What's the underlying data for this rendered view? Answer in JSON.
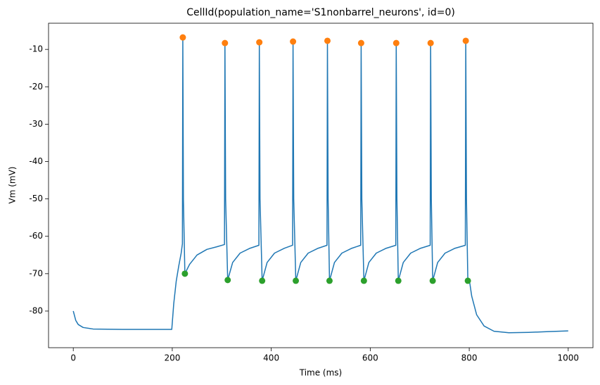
{
  "chart_data": {
    "type": "line",
    "title": "CellId(population_name='S1nonbarrel_neurons', id=0)",
    "x_label": "Time (ms)",
    "y_label": "Vm (mV)",
    "xlim": [
      -50,
      1050
    ],
    "ylim": [
      -89.8,
      -3.0
    ],
    "xticks": [
      0,
      200,
      400,
      600,
      800,
      1000
    ],
    "yticks": [
      -80,
      -70,
      -60,
      -50,
      -40,
      -30,
      -20,
      -10
    ],
    "grid": false,
    "series": [
      {
        "mode": "line",
        "color": "#1f77b4",
        "x": [
          0,
          5,
          10,
          20,
          40,
          100,
          199,
          203,
          208,
          213,
          218,
          220.5,
          221.3,
          222.5,
          225.5,
          235,
          250,
          270,
          290,
          305.5,
          306.4,
          307.8,
          312,
          322,
          337,
          357,
          375,
          375.9,
          377.3,
          381.6,
          391.6,
          406.6,
          426.6,
          443.1,
          444,
          445.4,
          449.6,
          459.6,
          474.6,
          494.6,
          512.6,
          513.5,
          514.9,
          517.7,
          527.7,
          542.7,
          562.7,
          580.7,
          581.6,
          583,
          587.2,
          597.2,
          612.2,
          632.2,
          651.6,
          652.5,
          653.9,
          656.7,
          666.7,
          681.7,
          701.7,
          721.1,
          722,
          723.4,
          726.2,
          736.2,
          751.2,
          771.2,
          792.1,
          793,
          794.4,
          797.2,
          800,
          805,
          815,
          830,
          850,
          880,
          920,
          960,
          1000
        ],
        "values": [
          -80,
          -82.5,
          -83.6,
          -84.4,
          -84.8,
          -84.9,
          -84.9,
          -78,
          -72,
          -68,
          -64.5,
          -62,
          -6.8,
          -50,
          -70.0,
          -67.5,
          -65,
          -63.5,
          -62.8,
          -62.2,
          -8.3,
          -50,
          -71.7,
          -67,
          -64.5,
          -63.2,
          -62.4,
          -8.1,
          -50,
          -71.9,
          -67,
          -64.5,
          -63.2,
          -62.4,
          -7.9,
          -50,
          -71.9,
          -67,
          -64.5,
          -63.2,
          -62.4,
          -7.7,
          -50,
          -71.9,
          -67,
          -64.5,
          -63.2,
          -62.4,
          -8.3,
          -50,
          -71.9,
          -67,
          -64.5,
          -63.2,
          -62.4,
          -8.3,
          -50,
          -71.9,
          -67,
          -64.5,
          -63.2,
          -62.4,
          -8.3,
          -50,
          -71.9,
          -67,
          -64.5,
          -63.2,
          -62.4,
          -7.7,
          -50,
          -71.9,
          -71.5,
          -76,
          -81,
          -84,
          -85.4,
          -85.8,
          -85.7,
          -85.5,
          -85.3
        ]
      },
      {
        "mode": "markers",
        "color": "#ff7f0e",
        "x": [
          221.3,
          306.4,
          375.9,
          444,
          513.5,
          581.6,
          652.5,
          722,
          793
        ],
        "values": [
          -6.8,
          -8.3,
          -8.1,
          -7.9,
          -7.7,
          -8.3,
          -8.3,
          -8.3,
          -7.7
        ]
      },
      {
        "mode": "markers",
        "color": "#2ca02c",
        "x": [
          225.5,
          312,
          381.6,
          449.6,
          517.7,
          587.2,
          656.7,
          726.2,
          797.2
        ],
        "values": [
          -70.0,
          -71.7,
          -71.9,
          -71.9,
          -71.9,
          -71.9,
          -71.9,
          -71.9,
          -71.9
        ]
      }
    ]
  }
}
